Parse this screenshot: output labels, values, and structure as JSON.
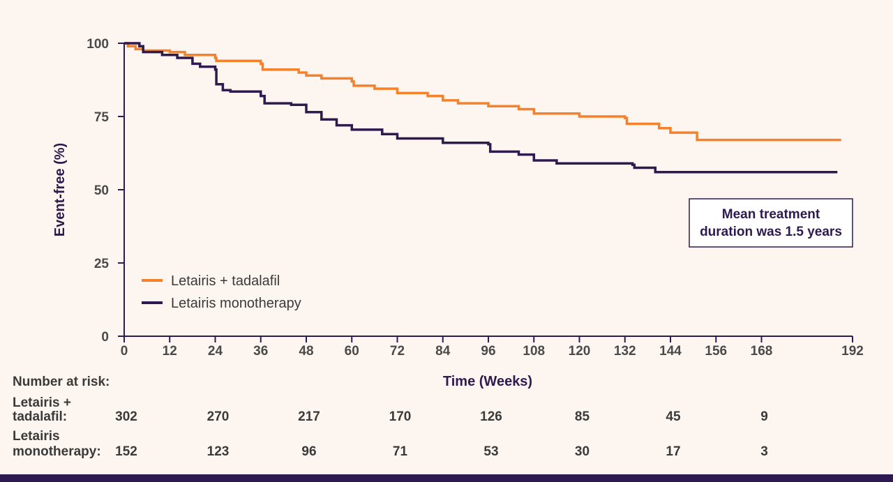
{
  "chart_data": {
    "type": "line",
    "subtype": "kaplan-meier",
    "xlabel": "Time (Weeks)",
    "ylabel": "Event-free (%)",
    "xlim": [
      0,
      192
    ],
    "ylim": [
      0,
      100
    ],
    "xticks": [
      0,
      12,
      24,
      36,
      48,
      60,
      72,
      84,
      96,
      108,
      120,
      132,
      144,
      156,
      168,
      192
    ],
    "xtick_labels": [
      "0",
      "12",
      "24",
      "36",
      "48",
      "60",
      "72",
      "84",
      "96",
      "108",
      "120",
      "132",
      "144",
      "156",
      "168",
      "192"
    ],
    "yticks": [
      0,
      25,
      50,
      75,
      100
    ],
    "ytick_labels": [
      "0",
      "25",
      "50",
      "75",
      "100"
    ],
    "series": [
      {
        "name": "Letairis + tadalafil",
        "color": "#f5822a",
        "points": [
          [
            0,
            100
          ],
          [
            1,
            99
          ],
          [
            3,
            98
          ],
          [
            5,
            97.5
          ],
          [
            12,
            97
          ],
          [
            16,
            96
          ],
          [
            24,
            95
          ],
          [
            24.3,
            94
          ],
          [
            36,
            93
          ],
          [
            36.5,
            91
          ],
          [
            46,
            90
          ],
          [
            48,
            89
          ],
          [
            52,
            88
          ],
          [
            60,
            87
          ],
          [
            60.5,
            85.5
          ],
          [
            66,
            84.5
          ],
          [
            72,
            83
          ],
          [
            80,
            82
          ],
          [
            84,
            80.5
          ],
          [
            88,
            79.5
          ],
          [
            96,
            78.5
          ],
          [
            104,
            77.5
          ],
          [
            108,
            76
          ],
          [
            120,
            75
          ],
          [
            132,
            74.5
          ],
          [
            132.5,
            72.5
          ],
          [
            141,
            71
          ],
          [
            144,
            69.5
          ],
          [
            151,
            67
          ],
          [
            189,
            67
          ]
        ]
      },
      {
        "name": "Letairis monotherapy",
        "color": "#2e1a4e",
        "points": [
          [
            0,
            100
          ],
          [
            4,
            99
          ],
          [
            5,
            97
          ],
          [
            10,
            96
          ],
          [
            14,
            95
          ],
          [
            18,
            93
          ],
          [
            20,
            92
          ],
          [
            24,
            91
          ],
          [
            24.3,
            86
          ],
          [
            26,
            84
          ],
          [
            28,
            83.5
          ],
          [
            36,
            82
          ],
          [
            37,
            79.5
          ],
          [
            44,
            79
          ],
          [
            48,
            76.5
          ],
          [
            52,
            74
          ],
          [
            56,
            72
          ],
          [
            60,
            70.5
          ],
          [
            68,
            69
          ],
          [
            72,
            67.5
          ],
          [
            80,
            67.5
          ],
          [
            84,
            66
          ],
          [
            96,
            65.5
          ],
          [
            96.5,
            63
          ],
          [
            104,
            62
          ],
          [
            108,
            60
          ],
          [
            114,
            59
          ],
          [
            120,
            59
          ],
          [
            134,
            58.5
          ],
          [
            134.5,
            57.5
          ],
          [
            140,
            56
          ],
          [
            188,
            56
          ]
        ]
      }
    ],
    "legend": [
      "Letairis + tadalafil",
      "Letairis monotherapy"
    ],
    "legend_position": "bottom-left"
  },
  "annotation": {
    "line1": "Mean treatment",
    "line2": "duration was 1.5 years"
  },
  "risk_table": {
    "header": "Number at risk:",
    "columns_weeks": [
      0,
      24,
      48,
      72,
      96,
      120,
      144,
      168
    ],
    "rows": [
      {
        "label_line1": "Letairis +",
        "label_line2": "tadalafil:",
        "values": [
          "302",
          "270",
          "217",
          "170",
          "126",
          "85",
          "45",
          "9"
        ]
      },
      {
        "label_line1": "Letairis",
        "label_line2": "monotherapy:",
        "values": [
          "152",
          "123",
          "96",
          "71",
          "53",
          "30",
          "17",
          "3"
        ]
      }
    ]
  }
}
